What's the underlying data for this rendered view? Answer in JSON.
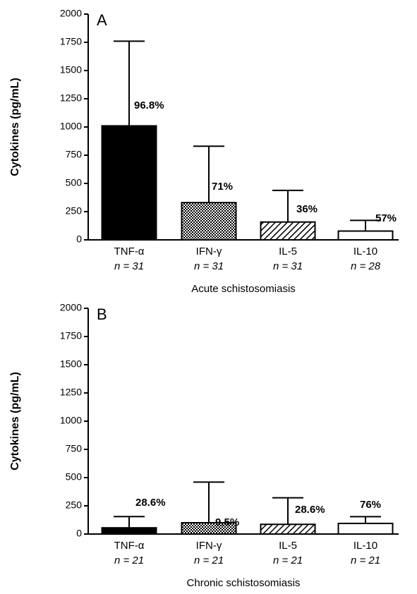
{
  "chart_data": [
    {
      "type": "bar",
      "panel": "A",
      "x_label": "Acute schistosomiasis",
      "y_label": "Cytokines (pg/mL)",
      "categories": [
        "TNF-α",
        "IFN-γ",
        "IL-5",
        "IL-10"
      ],
      "n_labels": [
        "n = 31",
        "n = 31",
        "n = 31",
        "n = 28"
      ],
      "values": [
        1010,
        330,
        158,
        78
      ],
      "errors": [
        750,
        500,
        280,
        95
      ],
      "annotations": [
        "96.8%",
        "71%",
        "36%",
        "57%"
      ],
      "fills": [
        "solid",
        "crosshatch",
        "hatch",
        "open"
      ],
      "ylim": [
        0,
        2000
      ],
      "yticks": [
        0,
        250,
        500,
        750,
        1000,
        1250,
        1500,
        1750,
        2000
      ]
    },
    {
      "type": "bar",
      "panel": "B",
      "x_label": "Chronic schistosomiasis",
      "y_label": "Cytokines (pg/mL)",
      "categories": [
        "TNF-α",
        "IFN-γ",
        "IL-5",
        "IL-10"
      ],
      "n_labels": [
        "n = 21",
        "n = 21",
        "n = 21",
        "n = 21"
      ],
      "values": [
        55,
        100,
        86,
        94
      ],
      "errors": [
        100,
        360,
        235,
        60
      ],
      "annotations": [
        "28.6%",
        "9.5%",
        "28.6%",
        "76%"
      ],
      "fills": [
        "solid",
        "crosshatch",
        "hatch",
        "open"
      ],
      "ylim": [
        0,
        2000
      ],
      "yticks": [
        0,
        250,
        500,
        750,
        1000,
        1250,
        1500,
        1750,
        2000
      ]
    }
  ]
}
